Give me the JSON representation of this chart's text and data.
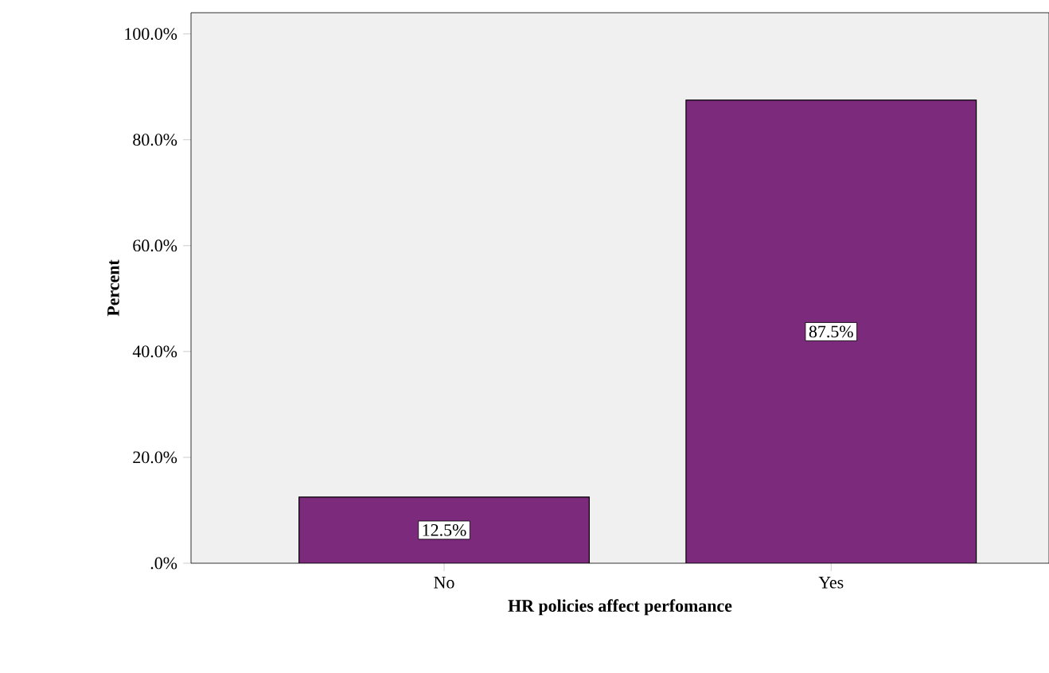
{
  "chart_data": {
    "type": "bar",
    "xlabel": "HR policies affect perfomance",
    "ylabel": "Percent",
    "categories": [
      "No",
      "Yes"
    ],
    "values": [
      12.5,
      87.5
    ],
    "color": "#7b2a7c",
    "value_labels": [
      "12.5%",
      "87.5%"
    ],
    "ylim": [
      0,
      104
    ],
    "yticks": [
      {
        "value": 0,
        "label": ".0%"
      },
      {
        "value": 20,
        "label": "20.0%"
      },
      {
        "value": 40,
        "label": "40.0%"
      },
      {
        "value": 60,
        "label": "60.0%"
      },
      {
        "value": 80,
        "label": "80.0%"
      },
      {
        "value": 100,
        "label": "100.0%"
      }
    ],
    "grid": false
  }
}
